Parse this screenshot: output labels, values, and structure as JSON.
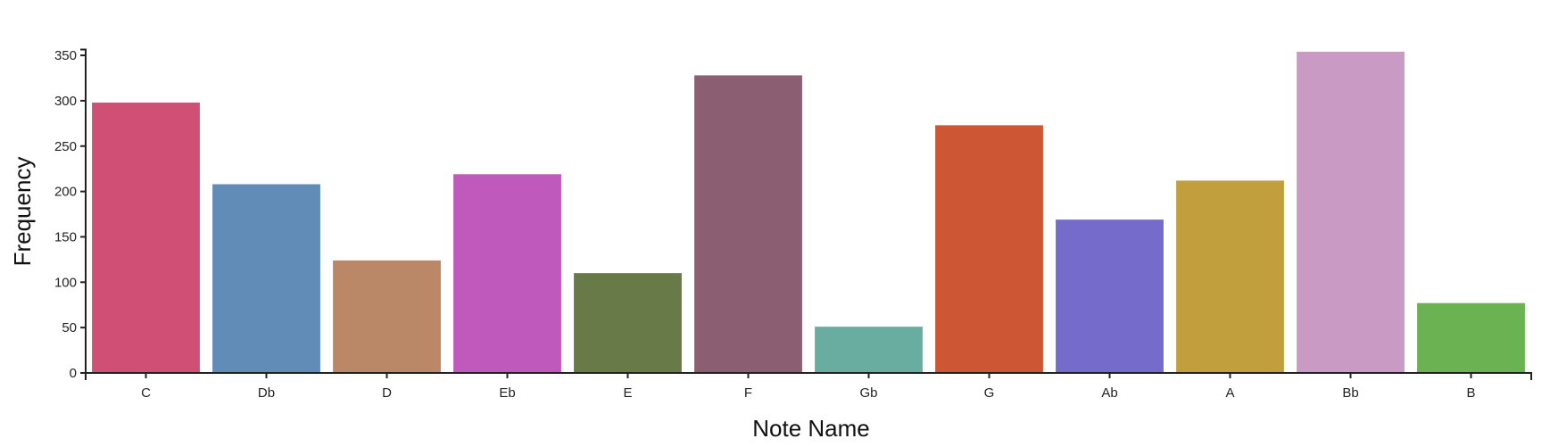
{
  "chart_data": {
    "type": "bar",
    "title": "",
    "xlabel": "Note Name",
    "ylabel": "Frequency",
    "categories": [
      "C",
      "Db",
      "D",
      "Eb",
      "E",
      "F",
      "Gb",
      "G",
      "Ab",
      "A",
      "Bb",
      "B"
    ],
    "values": [
      298,
      208,
      124,
      219,
      110,
      328,
      51,
      273,
      169,
      212,
      354,
      77
    ],
    "colors": [
      "#d04f75",
      "#628cb8",
      "#ba8767",
      "#bf59bc",
      "#687a48",
      "#8c5e72",
      "#68ad9f",
      "#cd5735",
      "#746bca",
      "#c29f3d",
      "#c99bc4",
      "#6bb253"
    ],
    "yticks": [
      0,
      50,
      100,
      150,
      200,
      250,
      300,
      350
    ],
    "ylim": [
      0,
      354
    ],
    "grid": false,
    "legend": "none"
  }
}
